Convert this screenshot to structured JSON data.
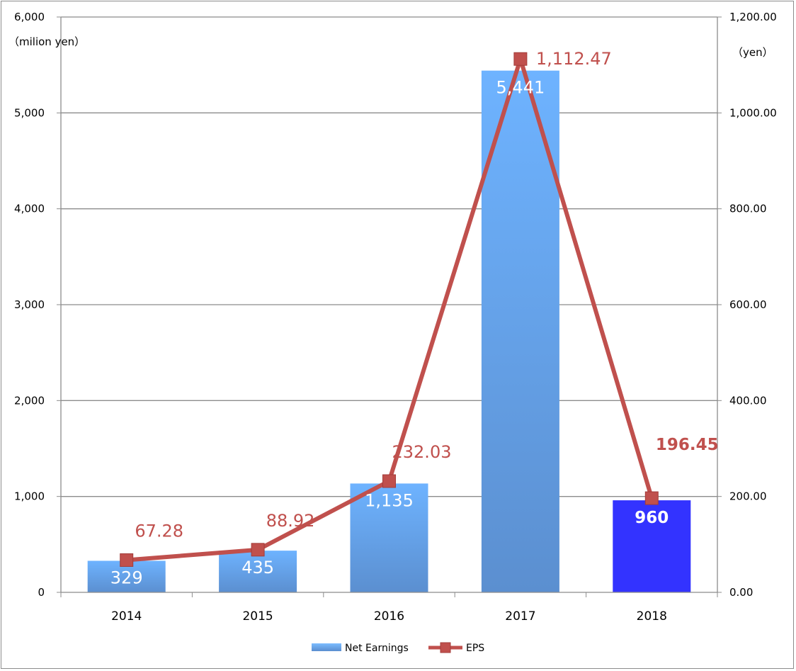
{
  "chart_data": {
    "type": "bar",
    "categories": [
      "2014",
      "2015",
      "2016",
      "2017",
      "2018"
    ],
    "series": [
      {
        "name": "Net Earnings",
        "kind": "bar",
        "axis": "left",
        "values": [
          329,
          435,
          1135,
          5441,
          960
        ],
        "labels": [
          "329",
          "435",
          "1,135",
          "5,441",
          "960"
        ],
        "color": "#5b9bd5",
        "highlight_index": 4,
        "highlight_color": "#3333ff"
      },
      {
        "name": "EPS",
        "kind": "line",
        "axis": "right",
        "values": [
          67.28,
          88.92,
          232.03,
          1112.47,
          196.45
        ],
        "labels": [
          "67.28",
          "88.92",
          "232.03",
          "1,112.47",
          "196.45"
        ],
        "color": "#c0504d",
        "highlight_index": 4
      }
    ],
    "left_axis": {
      "unit": "（milion yen）",
      "ylim": [
        0,
        6000
      ],
      "ticks": [
        "0",
        "1,000",
        "2,000",
        "3,000",
        "4,000",
        "5,000",
        "6,000"
      ]
    },
    "right_axis": {
      "unit": "（yen）",
      "ylim": [
        0,
        1200
      ],
      "ticks": [
        "0.00",
        "200.00",
        "400.00",
        "600.00",
        "800.00",
        "1,000.00",
        "1,200.00"
      ]
    },
    "grid": true,
    "legend": "bottom"
  }
}
